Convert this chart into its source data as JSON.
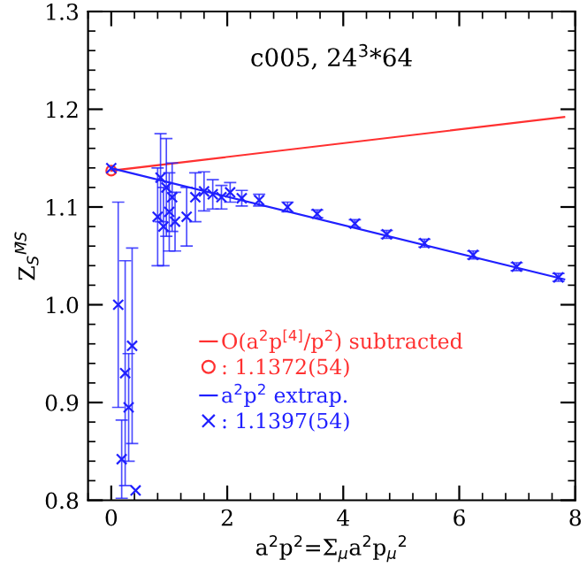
{
  "chart_data": {
    "type": "scatter",
    "title": "c005, 24$^{3}$*64",
    "xlabel": "a$^{2}$p$^{2}$=Σ$_{μ}$a$^{2}$p$_{μ}$$^{2}$",
    "ylabel": "Z$_{S}$$^{M̄S̄}$",
    "xlim": [
      -0.4,
      8
    ],
    "ylim": [
      0.8,
      1.3
    ],
    "xticks": [
      0,
      2,
      4,
      6,
      8
    ],
    "yticks": [
      0.8,
      0.9,
      {
        "value": 1,
        "label": "1.0"
      },
      1.1,
      1.2,
      1.3
    ],
    "grid": false,
    "legend": "bottom",
    "series": [
      {
        "name": "O(a$^{2}$p$^{[4]}$/p$^{2}$) subtracted",
        "type": "line",
        "color": "#ff3030",
        "marker": "none",
        "x": [
          0,
          7.81
        ],
        "values": [
          1.1372,
          1.192
        ]
      },
      {
        "name": ": 1.1372(54)",
        "color": "#ff3030",
        "marker": "circle",
        "x": [
          0
        ],
        "values": [
          1.1372
        ]
      },
      {
        "name": "a$^{2}$p$^{2}$ extrap.",
        "type": "line",
        "color": "#2020ff",
        "marker": "none",
        "x": [
          0,
          7.81
        ],
        "values": [
          1.1397,
          1.026
        ]
      },
      {
        "name": ": 1.1397(54)",
        "color": "#2020ff",
        "marker": "cross",
        "x": [
          0
        ],
        "values": [
          1.1397
        ]
      },
      {
        "color": "#2020ff",
        "marker": "cross",
        "x": [
          0.12,
          0.36,
          0.24,
          0.3,
          0.18,
          0.42,
          0.8,
          0.85,
          0.9,
          0.95,
          1.0,
          1.05,
          1.1,
          1.3,
          1.45,
          1.6,
          1.75,
          1.9,
          2.05,
          2.25,
          2.55,
          3.04,
          3.55,
          4.2,
          4.75,
          5.4,
          6.24,
          6.99,
          7.71
        ],
        "values": [
          1.0,
          0.958,
          0.93,
          0.895,
          0.842,
          0.81,
          1.09,
          1.13,
          1.08,
          1.12,
          1.095,
          1.11,
          1.085,
          1.09,
          1.11,
          1.116,
          1.113,
          1.11,
          1.115,
          1.109,
          1.107,
          1.1,
          1.093,
          1.083,
          1.072,
          1.063,
          1.051,
          1.039,
          1.028
        ],
        "errors": [
          0.105,
          0.1,
          0.115,
          0.055,
          0.04,
          null,
          0.05,
          0.045,
          0.04,
          0.05,
          0.04,
          0.035,
          0.03,
          0.03,
          0.025,
          0.02,
          0.015,
          0.012,
          0.01,
          0.008,
          0.006,
          0.005,
          0.004,
          0.004,
          0.004,
          0.004,
          0.004,
          0.004,
          0.004
        ]
      }
    ]
  }
}
